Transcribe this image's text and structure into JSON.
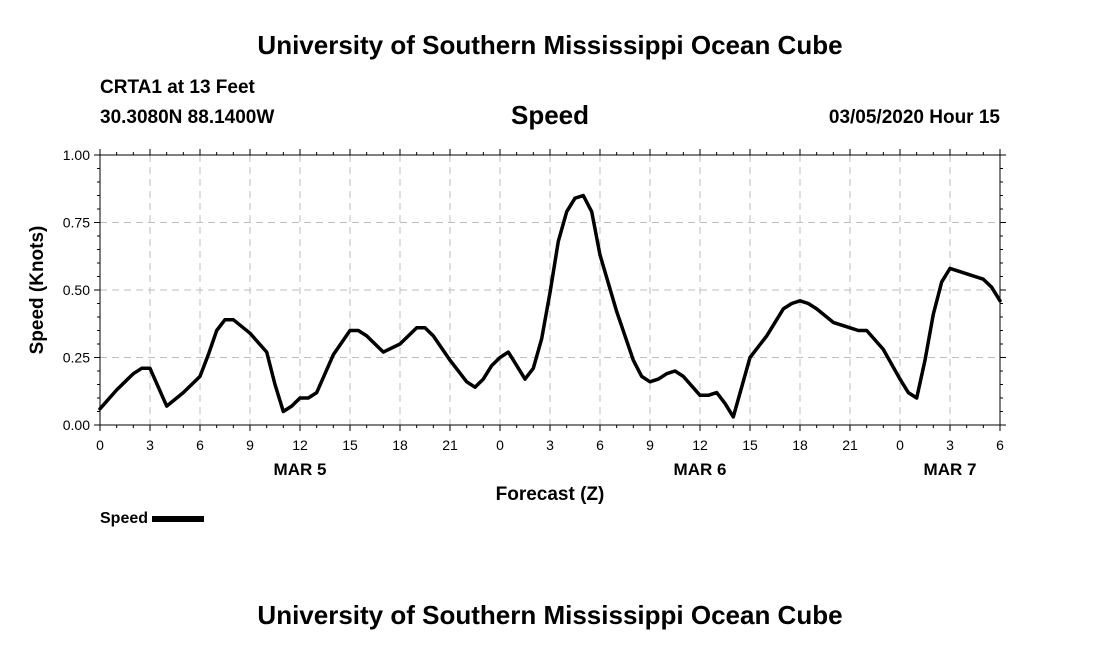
{
  "header": {
    "title": "University of Southern Mississippi Ocean Cube",
    "station": "CRTA1 at 13 Feet",
    "coords": "30.3080N 88.1400W",
    "variable": "Speed",
    "datetime": "03/05/2020 Hour 15"
  },
  "footer": {
    "title": "University of Southern Mississippi Ocean Cube"
  },
  "legend": {
    "label": "Speed",
    "color": "#000000"
  },
  "chart_data": {
    "type": "line",
    "title": "Speed",
    "xlabel": "Forecast (Z)",
    "ylabel": "Speed (Knots)",
    "ylim": [
      0,
      1
    ],
    "xlim": [
      0,
      54
    ],
    "grid": true,
    "legend_position": "bottom-left",
    "y_ticks": [
      {
        "value": 0,
        "label": "0.00"
      },
      {
        "value": 0.25,
        "label": "0.25"
      },
      {
        "value": 0.5,
        "label": "0.50"
      },
      {
        "value": 0.75,
        "label": "0.75"
      },
      {
        "value": 1,
        "label": "1.00"
      }
    ],
    "x_ticks": [
      {
        "value": 0,
        "label": "0"
      },
      {
        "value": 3,
        "label": "3"
      },
      {
        "value": 6,
        "label": "6"
      },
      {
        "value": 9,
        "label": "9"
      },
      {
        "value": 12,
        "label": "12"
      },
      {
        "value": 15,
        "label": "15"
      },
      {
        "value": 18,
        "label": "18"
      },
      {
        "value": 21,
        "label": "21"
      },
      {
        "value": 24,
        "label": "0"
      },
      {
        "value": 27,
        "label": "3"
      },
      {
        "value": 30,
        "label": "6"
      },
      {
        "value": 33,
        "label": "9"
      },
      {
        "value": 36,
        "label": "12"
      },
      {
        "value": 39,
        "label": "15"
      },
      {
        "value": 42,
        "label": "18"
      },
      {
        "value": 45,
        "label": "21"
      },
      {
        "value": 48,
        "label": "0"
      },
      {
        "value": 51,
        "label": "3"
      },
      {
        "value": 54,
        "label": "6"
      }
    ],
    "date_labels": [
      {
        "value": 12,
        "label": "MAR 5"
      },
      {
        "value": 36,
        "label": "MAR 6"
      },
      {
        "value": 51,
        "label": "MAR 7"
      }
    ],
    "series": [
      {
        "name": "Speed",
        "x": [
          0,
          1,
          2,
          2.5,
          3,
          4,
          5,
          6,
          6.5,
          7,
          7.5,
          8,
          9,
          10,
          10.5,
          11,
          11.5,
          12,
          12.5,
          13,
          14,
          15,
          15.5,
          16,
          17,
          18,
          19,
          19.5,
          20,
          21,
          22,
          22.5,
          23,
          23.5,
          24,
          24.5,
          25,
          25.5,
          26,
          26.5,
          27,
          27.5,
          28,
          28.5,
          29,
          29.5,
          30,
          31,
          32,
          32.5,
          33,
          33.5,
          34,
          34.5,
          35,
          36,
          36.5,
          37,
          37.5,
          38,
          39,
          40,
          40.5,
          41,
          41.5,
          42,
          42.5,
          43,
          44,
          45,
          45.5,
          46,
          47,
          48,
          48.5,
          49,
          49.5,
          50,
          50.5,
          51,
          52,
          53,
          53.5,
          54
        ],
        "values": [
          0.06,
          0.13,
          0.19,
          0.21,
          0.21,
          0.07,
          0.12,
          0.18,
          0.26,
          0.35,
          0.39,
          0.39,
          0.34,
          0.27,
          0.15,
          0.05,
          0.07,
          0.1,
          0.1,
          0.12,
          0.26,
          0.35,
          0.35,
          0.33,
          0.27,
          0.3,
          0.36,
          0.36,
          0.33,
          0.24,
          0.16,
          0.14,
          0.17,
          0.22,
          0.25,
          0.27,
          0.22,
          0.17,
          0.21,
          0.32,
          0.49,
          0.68,
          0.79,
          0.84,
          0.85,
          0.79,
          0.63,
          0.42,
          0.24,
          0.18,
          0.16,
          0.17,
          0.19,
          0.2,
          0.18,
          0.11,
          0.11,
          0.12,
          0.08,
          0.03,
          0.25,
          0.33,
          0.38,
          0.43,
          0.45,
          0.46,
          0.45,
          0.43,
          0.38,
          0.36,
          0.35,
          0.35,
          0.28,
          0.17,
          0.12,
          0.1,
          0.24,
          0.41,
          0.53,
          0.58,
          0.56,
          0.54,
          0.51,
          0.46
        ]
      }
    ]
  }
}
